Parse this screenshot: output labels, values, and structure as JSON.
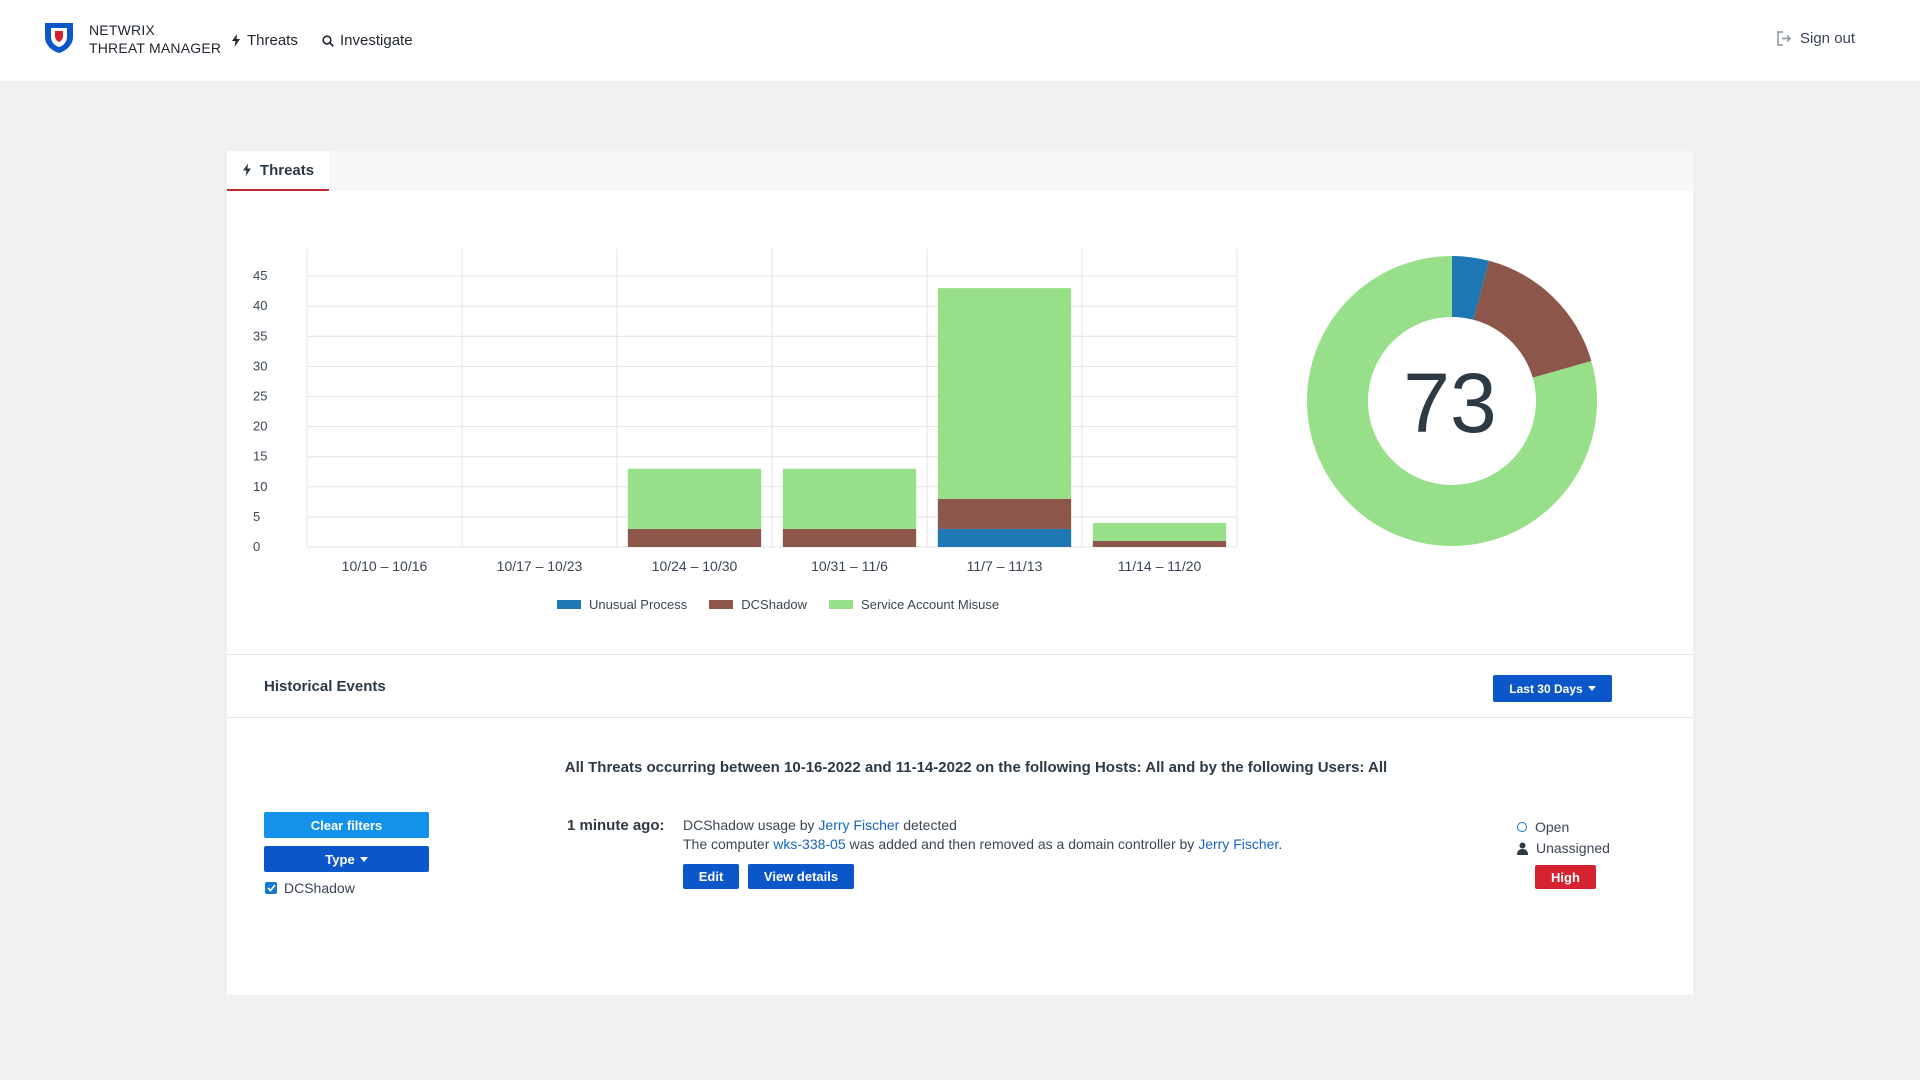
{
  "header": {
    "brand_line1": "NETWRIX",
    "brand_line2": "THREAT MANAGER",
    "nav": [
      {
        "label": "Threats",
        "icon": "bolt-icon"
      },
      {
        "label": "Investigate",
        "icon": "search-icon"
      }
    ],
    "signout_label": "Sign out"
  },
  "tab": {
    "label": "Threats",
    "icon": "bolt-icon"
  },
  "chart_data": [
    {
      "type": "bar",
      "stacked": true,
      "categories": [
        "10/10 – 10/16",
        "10/17 – 10/23",
        "10/24 – 10/30",
        "10/31 – 11/6",
        "11/7 – 11/13",
        "11/14 – 11/20"
      ],
      "series": [
        {
          "name": "Unusual Process",
          "color": "#1f77b4",
          "values": [
            0,
            0,
            0,
            0,
            3,
            0
          ]
        },
        {
          "name": "DCShadow",
          "color": "#8c564b",
          "values": [
            0,
            0,
            3,
            3,
            5,
            1
          ]
        },
        {
          "name": "Service Account Misuse",
          "color": "#98df8a",
          "values": [
            0,
            0,
            10,
            10,
            35,
            3
          ]
        }
      ],
      "yticks": [
        "0",
        "5",
        "10",
        "15",
        "20",
        "25",
        "30",
        "35",
        "40",
        "45"
      ],
      "ylim": [
        0,
        50
      ],
      "grid": true,
      "legend": "bottom"
    },
    {
      "type": "pie",
      "donut": true,
      "total_label": "73",
      "slices": [
        {
          "name": "Unusual Process",
          "value": 3,
          "color": "#1f77b4"
        },
        {
          "name": "DCShadow",
          "value": 12,
          "color": "#8c564b"
        },
        {
          "name": "Service Account Misuse",
          "value": 58,
          "color": "#98df8a"
        }
      ]
    }
  ],
  "historical": {
    "title": "Historical Events",
    "range_label": "Last 30 Days",
    "summary": "All Threats occurring between 10-16-2022 and 11-14-2022 on the following Hosts: All and by the following Users: All"
  },
  "filters": {
    "clear_label": "Clear filters",
    "type_label": "Type",
    "options": [
      {
        "label": "DCShadow",
        "checked": true
      }
    ]
  },
  "event": {
    "time": "1 minute ago:",
    "line1_a": "DCShadow usage by ",
    "line1_user": "Jerry Fischer",
    "line1_b": " detected",
    "line2_a": "The computer ",
    "line2_host": "wks-338-05",
    "line2_b": " was added and then removed as a domain controller by ",
    "line2_user": "Jerry Fischer",
    "line2_c": ".",
    "edit_label": "Edit",
    "details_label": "View details",
    "status": "Open",
    "assignee": "Unassigned",
    "severity": "High"
  }
}
